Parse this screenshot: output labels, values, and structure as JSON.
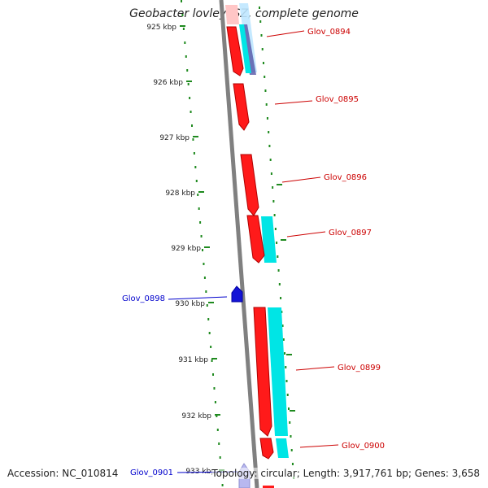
{
  "title": "Geobacter lovleyi SZ, complete genome",
  "footer": {
    "accession": "Accession: NC_010814",
    "summary": "Topology: circular; Length: 3,917,761 bp; Genes: 3,658"
  },
  "colors": {
    "background": "#ffffff",
    "backbone": "#808080",
    "tick": "#1f8a1f",
    "forward_gene": "#ff1a1a",
    "reverse_gene": "#1414d6",
    "forward_label": "#cc0000",
    "reverse_label": "#0000cc",
    "track_feature": "#00e5e5"
  },
  "ruler": {
    "unit": "kbp",
    "ticks": [
      "925 kbp",
      "926 kbp",
      "927 kbp",
      "928 kbp",
      "929 kbp",
      "930 kbp",
      "931 kbp",
      "932 kbp",
      "933 kbp"
    ]
  },
  "genes": [
    {
      "name": "Glov_0894",
      "strand": "forward"
    },
    {
      "name": "Glov_0895",
      "strand": "forward"
    },
    {
      "name": "Glov_0896",
      "strand": "forward"
    },
    {
      "name": "Glov_0897",
      "strand": "forward"
    },
    {
      "name": "Glov_0898",
      "strand": "reverse"
    },
    {
      "name": "Glov_0899",
      "strand": "forward"
    },
    {
      "name": "Glov_0900",
      "strand": "forward"
    },
    {
      "name": "Glov_0901",
      "strand": "reverse"
    }
  ]
}
